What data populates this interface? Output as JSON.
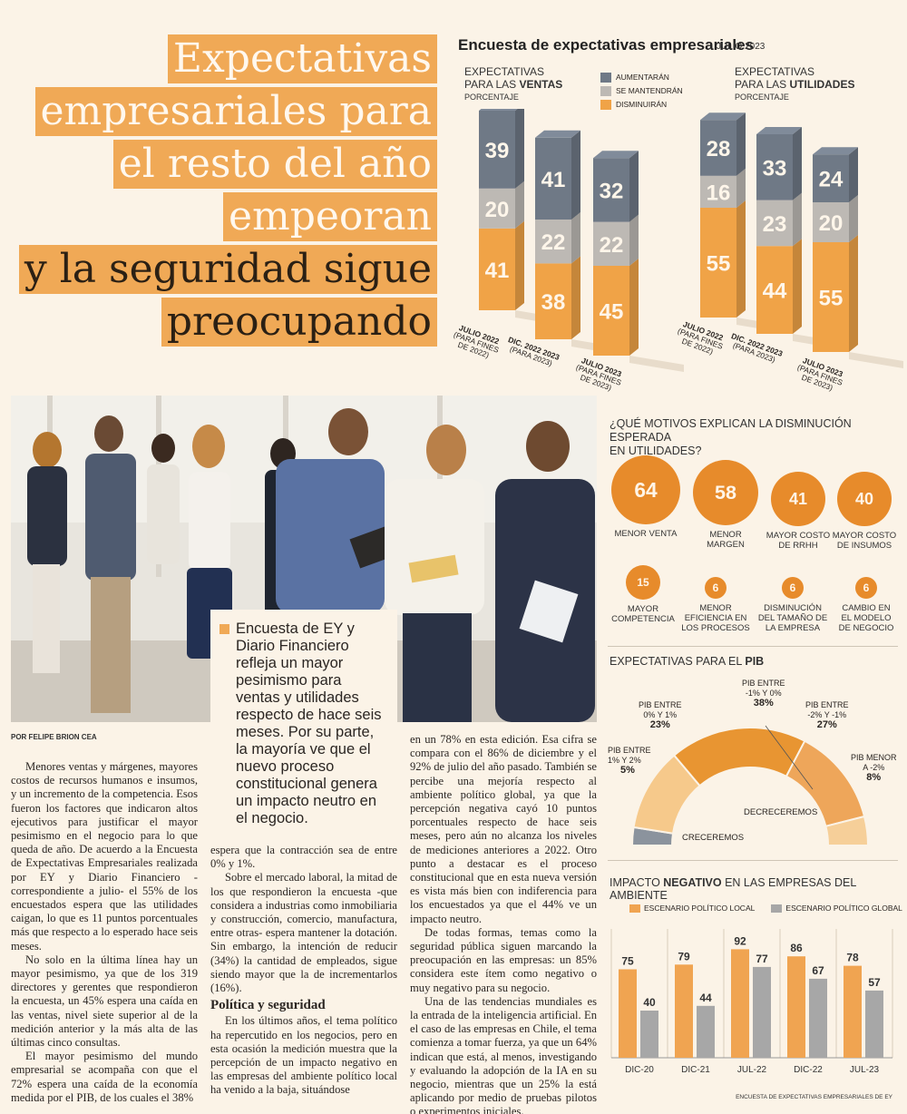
{
  "headline": {
    "lines": [
      "Expectativas",
      "empresariales para",
      "el resto del año",
      "empeoran",
      "y la seguridad sigue",
      "preocupando"
    ]
  },
  "survey": {
    "title": "Encuesta de expectativas empresariales",
    "date": "JULIO 2023",
    "sales_label_1": "EXPECTATIVAS",
    "sales_label_2": "PARA LAS ",
    "sales_label_bold": "VENTAS",
    "profit_label_1": "EXPECTATIVAS",
    "profit_label_2": "PARA LAS ",
    "profit_label_bold": "UTILIDADES",
    "unit": "PORCENTAJE",
    "legend": [
      "AUMENTARÁN",
      "SE MANTENDRÁN",
      "DISMINUIRÁN"
    ],
    "colors": {
      "aumentaran": "#6f7986",
      "mantendran": "#bdb9b4",
      "disminuiran": "#f0a347"
    }
  },
  "chart_data": [
    {
      "type": "bar",
      "title": "EXPECTATIVAS PARA LAS VENTAS",
      "unit": "PORCENTAJE",
      "categories": [
        "JULIO 2022 (PARA FINES DE 2022)",
        "DIC. 2022 2023 (PARA 2023)",
        "JULIO 2023 (PARA FINES DE 2023)"
      ],
      "series": [
        {
          "name": "AUMENTARÁN",
          "values": [
            39,
            41,
            32
          ]
        },
        {
          "name": "SE MANTENDRÁN",
          "values": [
            20,
            22,
            22
          ]
        },
        {
          "name": "DISMINUIRÁN",
          "values": [
            41,
            38,
            45
          ]
        }
      ]
    },
    {
      "type": "bar",
      "title": "EXPECTATIVAS PARA LAS UTILIDADES",
      "unit": "PORCENTAJE",
      "categories": [
        "JULIO 2022 (PARA FINES DE 2022)",
        "DIC. 2022 2023 (PARA 2023)",
        "JULIO 2023 (PARA FINES DE 2023)"
      ],
      "series": [
        {
          "name": "AUMENTARÁN",
          "values": [
            28,
            33,
            24
          ]
        },
        {
          "name": "SE MANTENDRÁN",
          "values": [
            16,
            23,
            20
          ]
        },
        {
          "name": "DISMINUIRÁN",
          "values": [
            55,
            44,
            55
          ]
        }
      ]
    },
    {
      "type": "bar",
      "title": "¿QUÉ MOTIVOS EXPLICAN LA DISMINUCIÓN ESPERADA EN UTILIDADES?",
      "categories": [
        "MENOR VENTA",
        "MENOR MARGEN",
        "MAYOR COSTO DE RRHH",
        "MAYOR COSTO DE INSUMOS",
        "MAYOR COMPETENCIA",
        "MENOR EFICIENCIA EN LOS PROCESOS",
        "DISMINUCIÓN DEL TAMAÑO DE LA EMPRESA",
        "CAMBIO EN EL MODELO DE NEGOCIO"
      ],
      "values": [
        64,
        58,
        41,
        40,
        15,
        6,
        6,
        6
      ]
    },
    {
      "type": "pie",
      "title": "EXPECTATIVAS PARA EL PIB",
      "categories": [
        "PIB ENTRE 1% Y 2%",
        "PIB ENTRE 0% Y 1%",
        "PIB ENTRE -1% Y 0%",
        "PIB ENTRE -2% Y -1%",
        "PIB MENOR A -2%"
      ],
      "values": [
        5,
        23,
        38,
        27,
        8
      ],
      "annotations": [
        "CRECEREMOS",
        "DECRECEREMOS"
      ]
    },
    {
      "type": "bar",
      "title": "IMPACTO NEGATIVO EN LAS EMPRESAS DEL AMBIENTE",
      "categories": [
        "DIC-20",
        "DIC-21",
        "JUL-22",
        "DIC-22",
        "JUL-23"
      ],
      "series": [
        {
          "name": "ESCENARIO POLÍTICO LOCAL",
          "values": [
            75,
            79,
            92,
            86,
            78
          ]
        },
        {
          "name": "ESCENARIO POLÍTICO GLOBAL",
          "values": [
            40,
            44,
            77,
            67,
            57
          ]
        }
      ],
      "ylim": [
        0,
        100
      ]
    }
  ],
  "x_labels": {
    "c1": [
      "JULIO 2022",
      "(PARA FINES",
      "DE 2022)"
    ],
    "c2": [
      "DIC. 2022 2023",
      "(PARA 2023)"
    ],
    "c3": [
      "JULIO 2023",
      "(PARA FINES",
      "DE 2023)"
    ]
  },
  "motivos": {
    "title_1": "¿QUÉ MOTIVOS EXPLICAN LA DISMINUCIÓN ESPERADA",
    "title_2": "EN UTILIDADES?",
    "labels": [
      [
        "MENOR VENTA"
      ],
      [
        "MENOR",
        "MARGEN"
      ],
      [
        "MAYOR COSTO",
        "DE RRHH"
      ],
      [
        "MAYOR COSTO",
        "DE INSUMOS"
      ],
      [
        "MAYOR",
        "COMPETENCIA"
      ],
      [
        "MENOR",
        "EFICIENCIA EN",
        "LOS PROCESOS"
      ],
      [
        "DISMINUCIÓN",
        "DEL TAMAÑO DE",
        "LA EMPRESA"
      ],
      [
        "CAMBIO EN",
        "EL MODELO",
        "DE NEGOCIO"
      ]
    ]
  },
  "pib": {
    "title_1": "EXPECTATIVAS PARA EL ",
    "title_bold": "PIB",
    "labels": [
      [
        "PIB ENTRE",
        "1% Y 2%",
        "5%"
      ],
      [
        "PIB ENTRE",
        "0% Y 1%",
        "23%"
      ],
      [
        "PIB ENTRE",
        "-1% Y 0%",
        "38%"
      ],
      [
        "PIB ENTRE",
        "-2% Y -1%",
        "27%"
      ],
      [
        "PIB MENOR",
        "A -2%",
        "8%"
      ]
    ],
    "creceremos": "CRECEREMOS",
    "decreceremos": "DECRECEREMOS",
    "colors": [
      "#8b939d",
      "#f6c98b",
      "#e89532",
      "#eea65a",
      "#f6cf99"
    ]
  },
  "impacto": {
    "title_1": "IMPACTO ",
    "title_bold": "NEGATIVO",
    "title_2": " EN LAS EMPRESAS DEL AMBIENTE",
    "legend_local": "ESCENARIO POLÍTICO LOCAL",
    "legend_global": "ESCENARIO POLÍTICO GLOBAL",
    "colors": {
      "local": "#f0a451",
      "global": "#a7a7a7"
    }
  },
  "source": "ENCUESTA DE EXPECTATIVAS EMPRESARIALES DE EY",
  "callout": "Encuesta de EY y Diario Financiero refleja un mayor pesimismo para ventas y utilidades respecto de hace seis meses. Por su parte, la mayoría ve que el nuevo proceso constitucional genera un impacto neutro en el negocio.",
  "byline": "POR FELIPE BRION CEA",
  "article": {
    "col1": [
      "Menores ventas y márgenes, mayores costos de recursos humanos e insumos, y un incremento de la competencia. Esos fueron los factores que indicaron altos ejecutivos para justificar el mayor pesimismo en el negocio para lo que queda de año. De acuerdo a la Encuesta de Expectativas Empresariales realizada por EY y Diario Financiero -correspondiente a julio- el 55% de los encuestados espera que las utilidades caigan, lo que es 11 puntos porcentuales más que respecto a lo esperado hace seis meses.",
      "No solo en la última línea hay un mayor pesimismo, ya que de los 319 directores y gerentes que respondieron la encuesta, un 45% espera una caída en las ventas, nivel siete superior al de la medición anterior y la más alta de las últimas cinco consultas.",
      "El mayor pesimismo del mundo empresarial se acompaña con que el 72% espera una caída de la economía medida por el PIB, de los cuales el 38%"
    ],
    "col2": [
      "espera que la contracción sea de entre 0% y 1%.",
      "Sobre el mercado laboral, la mitad de los que respondieron la encuesta -que considera a industrias como inmobiliaria y construcción, comercio, manufactura, entre otras- espera mantener la dotación. Sin embargo, la intención de reducir (34%) la cantidad de empleados, sigue siendo mayor que la de incrementarlos (16%)."
    ],
    "subhead": "Política y seguridad",
    "col2b": [
      "En los últimos años, el tema político ha repercutido en los negocios, pero en esta ocasión la medición muestra que la percepción de un impacto negativo en las empresas del ambiente político local ha venido a la baja, situándose"
    ],
    "col3": [
      "en un 78% en esta edición. Esa cifra se compara con el 86% de diciembre y el 92% de julio del año pasado. También se percibe una mejoría respecto al ambiente político global, ya que la percepción negativa cayó 10 puntos porcentuales respecto de hace seis meses, pero aún no alcanza los niveles de mediciones anteriores a 2022. Otro punto a destacar es el proceso constitucional que en esta nueva versión es vista más bien con indiferencia para los encuestados ya que el 44% ve un impacto neutro.",
      "De todas formas, temas como la seguridad pública siguen marcando la preocupación en las empresas: un 85% considera este ítem como negativo o muy negativo para su negocio.",
      "Una de las tendencias mundiales es la entrada de la inteligencia artificial. En el caso de las empresas en Chile, el tema comienza a tomar fuerza, ya que un 64% indican que está, al menos, investigando y evaluando la adopción de la IA en su negocio, mientras que un 25% la está aplicando por medio de pruebas pilotos o experimentos iniciales."
    ]
  }
}
